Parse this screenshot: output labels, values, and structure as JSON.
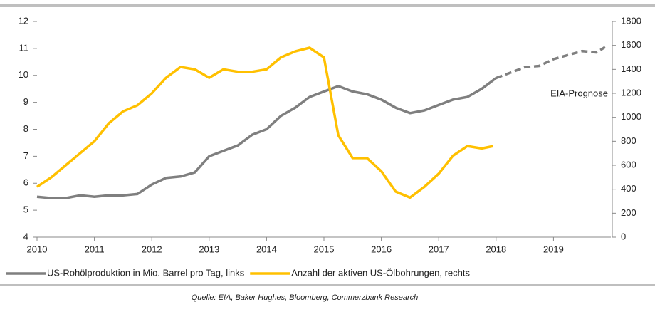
{
  "chart_data": {
    "type": "line",
    "xlim": [
      2010,
      2020
    ],
    "xticks": [
      2010,
      2011,
      2012,
      2013,
      2014,
      2015,
      2016,
      2017,
      2018,
      2019
    ],
    "ylim": [
      4,
      12
    ],
    "yticks": [
      4,
      5,
      6,
      7,
      8,
      9,
      10,
      11,
      12
    ],
    "y2lim": [
      0,
      1800
    ],
    "y2ticks": [
      0,
      200,
      400,
      600,
      800,
      1000,
      1200,
      1400,
      1600,
      1800
    ],
    "grid": false,
    "legend": "bottom",
    "series": [
      {
        "name": "US-Rohölproduktion in Mio. Barrel pro Tag, links",
        "color": "#7f7f7f",
        "x": [
          2010,
          2010.25,
          2010.5,
          2010.75,
          2011,
          2011.25,
          2011.5,
          2011.75,
          2012,
          2012.25,
          2012.5,
          2012.75,
          2013,
          2013.25,
          2013.5,
          2013.75,
          2014,
          2014.25,
          2014.5,
          2014.75,
          2015,
          2015.25,
          2015.5,
          2015.75,
          2016,
          2016.25,
          2016.5,
          2016.75,
          2017,
          2017.25,
          2017.5,
          2017.75,
          2018
        ],
        "values": [
          5.5,
          5.45,
          5.45,
          5.55,
          5.5,
          5.55,
          5.55,
          5.6,
          5.95,
          6.2,
          6.25,
          6.4,
          7.0,
          7.2,
          7.4,
          7.8,
          8.0,
          8.5,
          8.8,
          9.2,
          9.4,
          9.6,
          9.4,
          9.3,
          9.1,
          8.8,
          8.6,
          8.7,
          8.9,
          9.1,
          9.2,
          9.5,
          9.9
        ]
      },
      {
        "name": "Anzahl der aktiven US-Ölbohrungen, rechts",
        "color": "#ffc000",
        "axis": "y2",
        "x": [
          2010,
          2010.25,
          2010.5,
          2010.75,
          2011,
          2011.25,
          2011.5,
          2011.75,
          2012,
          2012.25,
          2012.5,
          2012.75,
          2013,
          2013.25,
          2013.5,
          2013.75,
          2014,
          2014.25,
          2014.5,
          2014.75,
          2015,
          2015.25,
          2015.5,
          2015.75,
          2016,
          2016.25,
          2016.5,
          2016.75,
          2017,
          2017.25,
          2017.5,
          2017.75,
          2017.95
        ],
        "values": [
          420,
          500,
          600,
          700,
          800,
          950,
          1050,
          1100,
          1200,
          1330,
          1420,
          1400,
          1330,
          1400,
          1380,
          1380,
          1400,
          1500,
          1550,
          1580,
          1500,
          850,
          660,
          660,
          550,
          380,
          330,
          420,
          530,
          680,
          760,
          740,
          760
        ]
      }
    ],
    "forecast": {
      "label": "EIA-Prognose",
      "color": "#7f7f7f",
      "x": [
        2018,
        2018.25,
        2018.5,
        2018.75,
        2019,
        2019.25,
        2019.5,
        2019.75,
        2019.9
      ],
      "values": [
        9.9,
        10.1,
        10.3,
        10.35,
        10.6,
        10.75,
        10.9,
        10.85,
        11.05
      ]
    },
    "source": "Quelle: EIA, Baker Hughes, Bloomberg, Commerzbank Research"
  }
}
